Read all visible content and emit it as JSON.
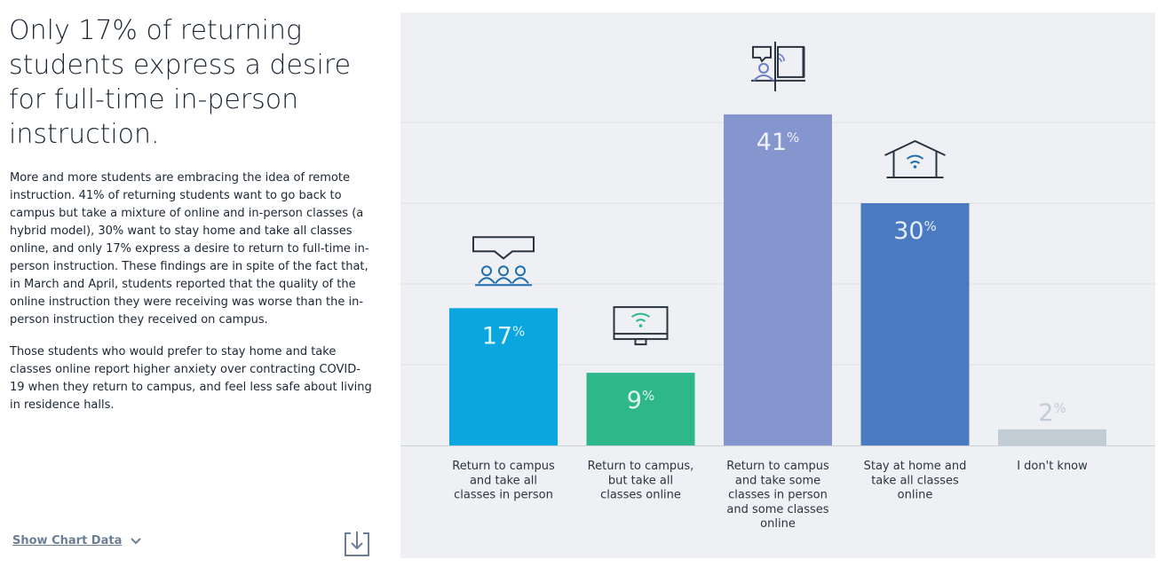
{
  "headline": "Only 17% of returning students express a desire for full-time in-person instruction.",
  "paragraphs": [
    "More and more students are embracing the idea of remote instruction. 41% of returning students want to go back to campus but take a mixture of online and in-person classes (a hybrid model), 30% want to stay home and take all classes online, and only 17% express a desire to return to full-time in-person instruction. These findings are in spite of the fact that, in March and April, students reported that the quality of the online instruction they were receiving was worse than the in-person instruction they received on campus.",
    "Those students who would prefer to stay home and take classes online report higher anxiety over contracting COVID-19 when they return to campus, and feel less safe about living in residence halls."
  ],
  "show_chart_data_label": "Show Chart Data",
  "icons": {
    "chevron": "chevron-down-icon",
    "download": "download-icon"
  },
  "chart_data": {
    "type": "bar",
    "title": "",
    "xlabel": "",
    "ylabel": "",
    "ylim": [
      0,
      47
    ],
    "grid": true,
    "value_suffix": "%",
    "categories": [
      [
        "Return to campus",
        "and take all",
        "classes in person"
      ],
      [
        "Return to campus,",
        "but take all",
        "classes online"
      ],
      [
        "Return to campus",
        "and take some",
        "classes in person",
        "and some classes",
        "online"
      ],
      [
        "Stay at home and",
        "take all classes",
        "online"
      ],
      [
        "I don't know"
      ]
    ],
    "values": [
      17,
      9,
      41,
      30,
      2
    ],
    "colors": [
      "#0aa6e0",
      "#2eb88a",
      "#8596cf",
      "#4a7bc0",
      "#c2ccd5"
    ],
    "label_colors": [
      "#dff3fb",
      "#e3f7ef",
      "#eef0fa",
      "#e4ecf7",
      "#c2ccd5"
    ],
    "icons": [
      "audience-icon",
      "wifi-monitor-icon",
      "hybrid-classroom-icon",
      "wifi-home-icon",
      ""
    ]
  }
}
